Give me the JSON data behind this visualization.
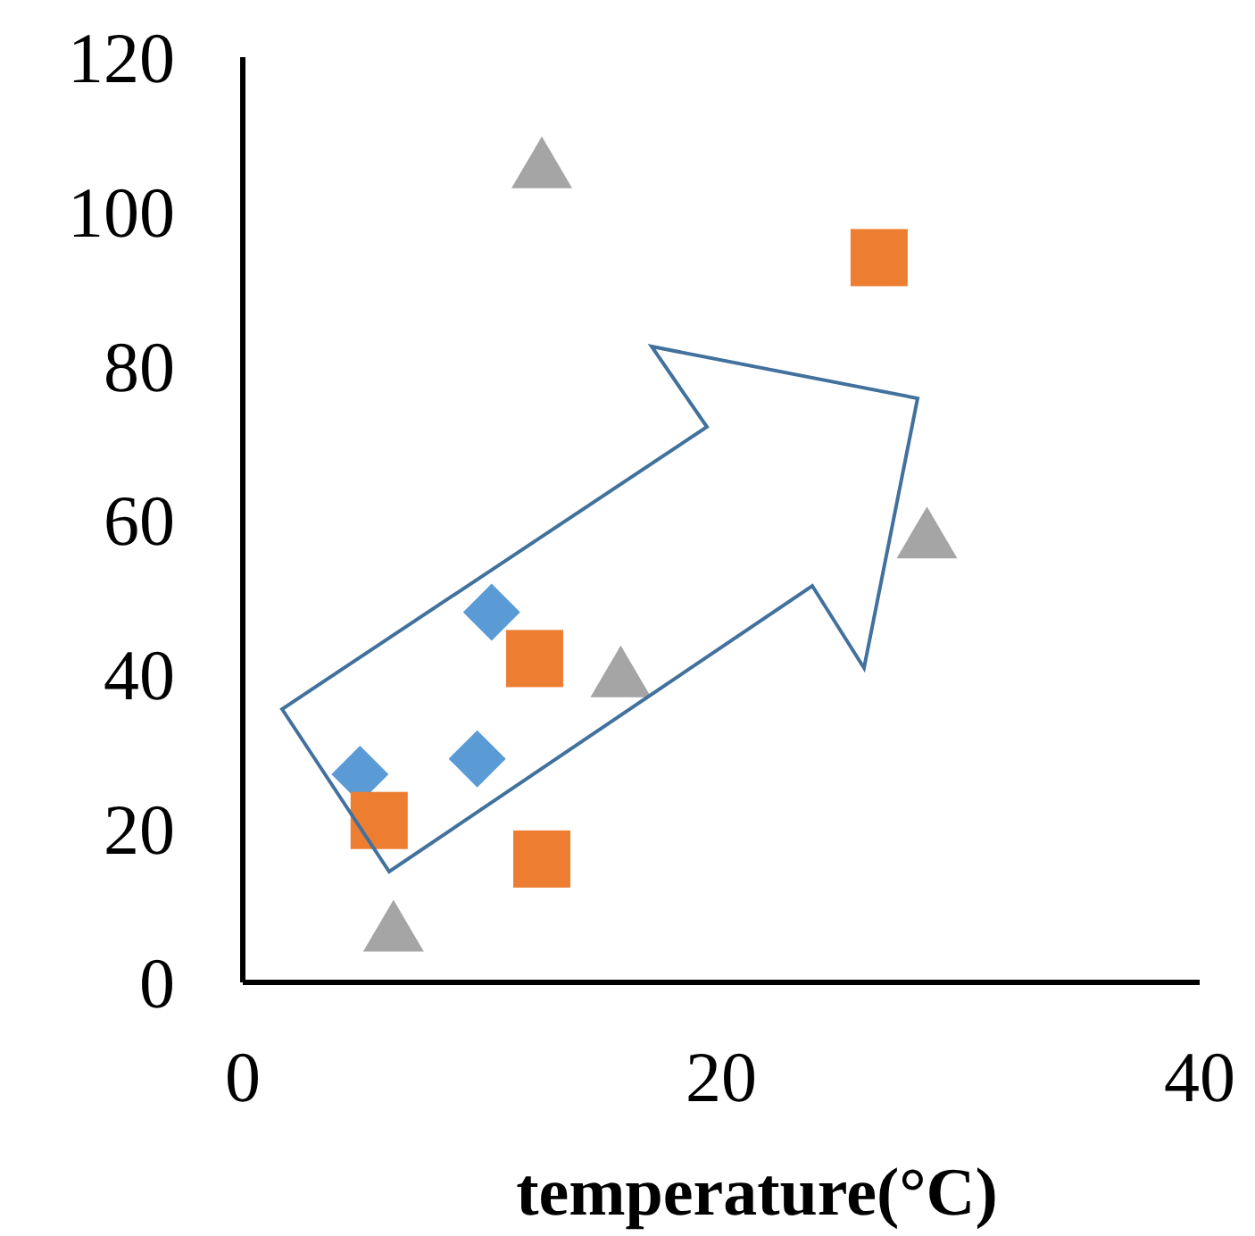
{
  "chart_data": {
    "type": "scatter",
    "xlabel": "temperature(°C)",
    "xlim": [
      0,
      40
    ],
    "xticks": [
      0,
      20,
      40
    ],
    "ylim": [
      0,
      120
    ],
    "yticks": [
      0,
      20,
      40,
      60,
      80,
      100,
      120
    ],
    "grid": false,
    "legend": false,
    "series": [
      {
        "color": "#5b9bd5",
        "marker": "diamond",
        "x": [
          4.9,
          10.4,
          9.8
        ],
        "values": [
          27,
          48,
          29
        ]
      },
      {
        "color": "#ed7d31",
        "marker": "square",
        "x": [
          5.7,
          12.2,
          12.5,
          26.6
        ],
        "values": [
          21,
          42,
          16,
          94
        ]
      },
      {
        "color": "#a5a5a5",
        "marker": "triangle",
        "x": [
          12.5,
          6.3,
          15.8,
          28.6
        ],
        "values": [
          106,
          7,
          40,
          58
        ]
      }
    ]
  }
}
